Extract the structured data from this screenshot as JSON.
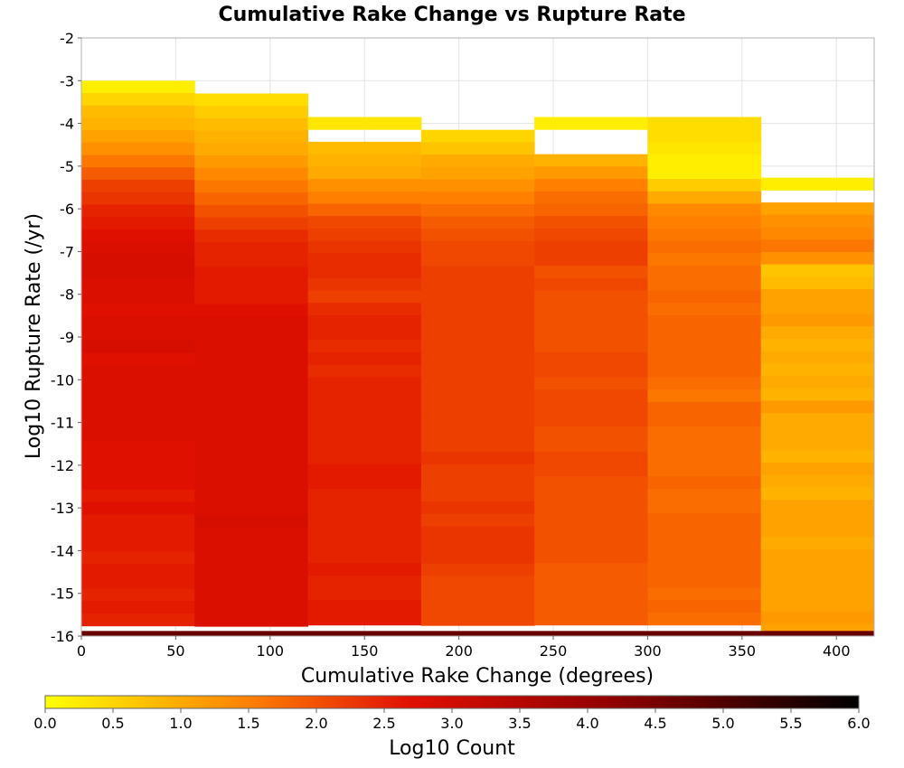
{
  "chart_data": {
    "type": "heatmap",
    "title": "Cumulative Rake Change vs Rupture Rate",
    "xlabel": "Cumulative Rake Change (degrees)",
    "ylabel": "Log10 Rupture Rate (/yr)",
    "xlim": [
      0,
      420
    ],
    "ylim": [
      -16,
      -2
    ],
    "x_ticks": [
      "0",
      "50",
      "100",
      "150",
      "200",
      "250",
      "300",
      "350",
      "400"
    ],
    "y_ticks": [
      "-2",
      "-3",
      "-4",
      "-5",
      "-6",
      "-7",
      "-8",
      "-9",
      "-10",
      "-11",
      "-12",
      "-13",
      "-14",
      "-15",
      "-16"
    ],
    "x_bin_width": 60,
    "y_bin_height": 0.29,
    "grid": true,
    "colorbar": {
      "label": "Log10 Count",
      "range": [
        0,
        6
      ],
      "ticks": [
        "0.0",
        "0.5",
        "1.0",
        "1.5",
        "2.0",
        "2.5",
        "3.0",
        "3.5",
        "4.0",
        "4.5",
        "5.0",
        "5.5",
        "6.0"
      ],
      "colors": [
        "#ffff00",
        "#ff8000",
        "#e01000",
        "#900000",
        "#000000"
      ]
    },
    "columns": [
      {
        "x": 0,
        "top_y": -3.0,
        "values": [
          0.2,
          0.5,
          0.8,
          0.9,
          1.1,
          1.3,
          1.6,
          1.9,
          2.2,
          2.3,
          2.5,
          2.6,
          2.7,
          2.8,
          2.9,
          2.9,
          2.8,
          2.8,
          2.7,
          2.8,
          2.8,
          2.9,
          2.7,
          2.8,
          2.8,
          2.8,
          2.8,
          2.8,
          2.8,
          2.7,
          2.7,
          2.7,
          2.7,
          2.6,
          2.7,
          2.6,
          2.6,
          2.6,
          2.5,
          2.6,
          2.6,
          2.5,
          2.6,
          2.5,
          2.6,
          2.6,
          2.4
        ]
      },
      {
        "x": 60,
        "top_y": -3.3,
        "values": [
          0.4,
          0.6,
          0.8,
          0.9,
          1.0,
          1.2,
          1.4,
          1.6,
          1.8,
          2.0,
          2.2,
          2.4,
          2.5,
          2.5,
          2.6,
          2.6,
          2.6,
          2.7,
          2.8,
          2.8,
          2.8,
          2.8,
          2.8,
          2.8,
          2.8,
          2.8,
          2.8,
          2.8,
          2.8,
          2.8,
          2.8,
          2.8,
          2.8,
          2.8,
          2.9,
          2.8,
          2.8,
          2.8,
          2.8,
          2.8,
          2.8,
          2.8,
          2.8,
          2.7
        ]
      },
      {
        "x": 120,
        "top_y": -3.85,
        "gaps": [
          0.2,
          0.2
        ],
        "values": [
          0.3,
          null,
          0.8,
          0.9,
          1.0,
          1.3,
          1.5,
          1.8,
          2.1,
          2.2,
          2.3,
          2.4,
          2.4,
          2.3,
          2.2,
          2.4,
          2.5,
          2.5,
          2.4,
          2.5,
          2.4,
          2.5,
          2.5,
          2.5,
          2.5,
          2.5,
          2.5,
          2.5,
          2.6,
          2.6,
          2.5,
          2.5,
          2.5,
          2.5,
          2.5,
          2.5,
          2.6,
          2.5,
          2.5,
          2.6,
          2.6,
          2.6
        ]
      },
      {
        "x": 180,
        "top_y": -4.15,
        "values": [
          0.5,
          0.7,
          1.0,
          1.1,
          1.3,
          1.5,
          1.7,
          1.9,
          2.0,
          2.1,
          2.1,
          2.2,
          2.2,
          2.2,
          2.2,
          2.2,
          2.2,
          2.2,
          2.2,
          2.2,
          2.2,
          2.2,
          2.2,
          2.2,
          2.2,
          2.2,
          2.3,
          2.2,
          2.2,
          2.2,
          2.3,
          2.2,
          2.3,
          2.3,
          2.3,
          2.2,
          2.1,
          2.1,
          2.1,
          2.1,
          2.1
        ]
      },
      {
        "x": 240,
        "top_y": -3.85,
        "values": [
          0.2,
          null,
          null,
          0.9,
          1.2,
          1.5,
          1.7,
          1.8,
          2.0,
          2.1,
          2.2,
          2.2,
          2.0,
          2.1,
          2.0,
          2.0,
          2.0,
          2.0,
          2.0,
          2.1,
          2.1,
          2.0,
          2.1,
          2.1,
          2.1,
          2.0,
          2.0,
          2.1,
          2.1,
          2.0,
          2.0,
          2.0,
          2.0,
          2.0,
          2.0,
          2.0,
          1.9,
          1.9,
          1.9,
          1.9,
          1.9,
          1.9
        ]
      },
      {
        "x": 300,
        "top_y": -3.85,
        "values": [
          0.4,
          0.4,
          0.3,
          0.2,
          0.2,
          0.6,
          1.0,
          1.4,
          1.5,
          1.6,
          1.7,
          1.6,
          1.7,
          1.7,
          1.8,
          1.7,
          1.8,
          1.8,
          1.8,
          1.8,
          1.8,
          1.7,
          1.6,
          1.8,
          1.8,
          1.7,
          1.7,
          1.7,
          1.7,
          1.8,
          1.7,
          1.7,
          1.8,
          1.8,
          1.8,
          1.8,
          1.8,
          1.8,
          1.7,
          1.8,
          1.7,
          1.7
        ]
      },
      {
        "x": 360,
        "top_y": -5.27,
        "values": [
          0.2,
          null,
          1.1,
          1.3,
          1.4,
          1.6,
          1.3,
          0.7,
          0.8,
          1.1,
          1.1,
          1.2,
          1.0,
          0.9,
          1.0,
          0.9,
          1.0,
          0.9,
          1.2,
          1.0,
          1.0,
          1.0,
          0.9,
          1.1,
          1.0,
          0.9,
          1.1,
          1.1,
          1.1,
          1.0,
          1.1,
          1.1,
          1.1,
          1.1,
          1.1,
          1.2,
          1.1
        ]
      }
    ],
    "bottom_row": {
      "y": -16,
      "value": 4.7
    }
  }
}
